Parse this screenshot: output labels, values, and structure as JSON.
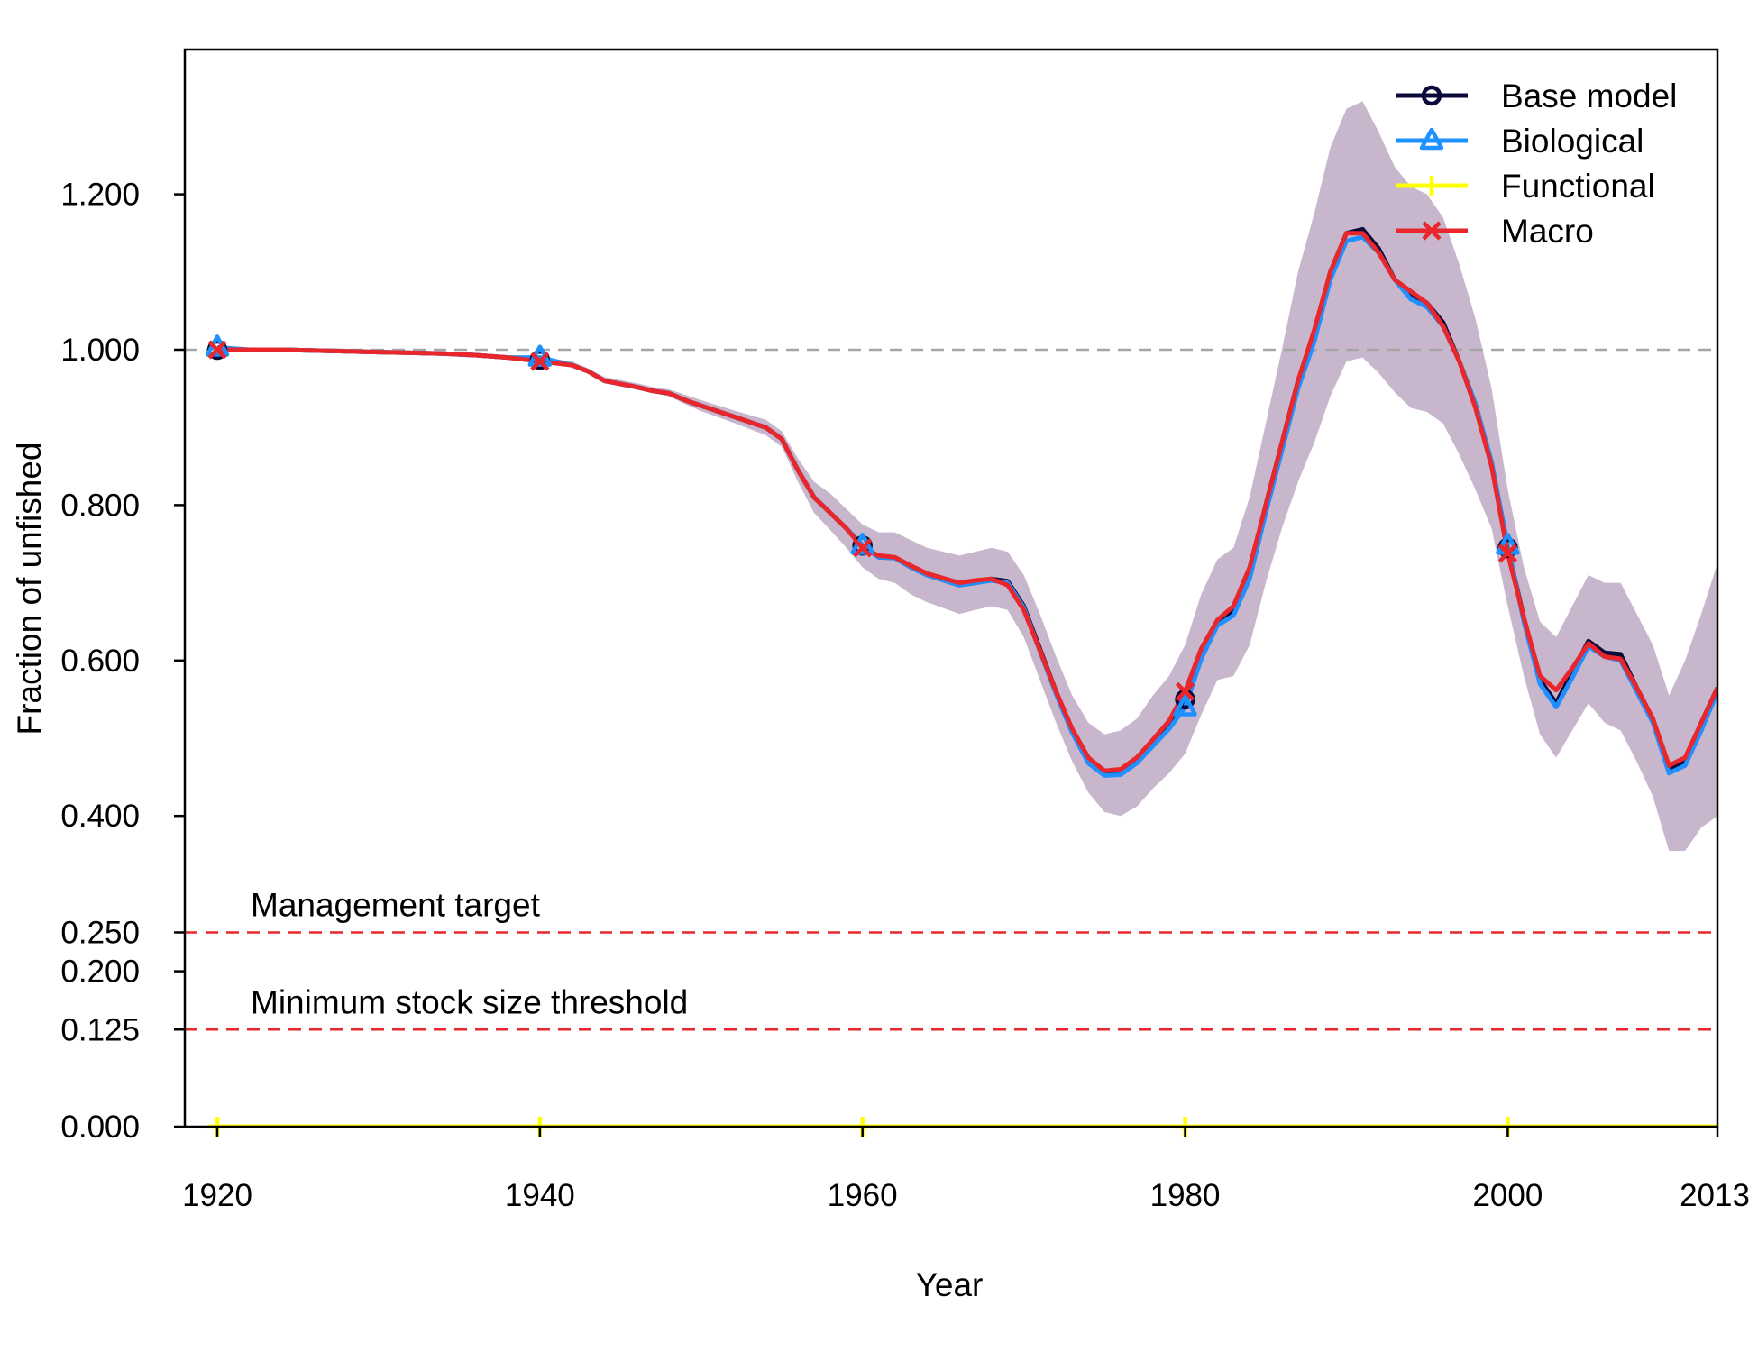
{
  "chart_data": {
    "type": "line",
    "xlabel": "Year",
    "ylabel": "Fraction of unfished",
    "xlim": [
      1918,
      2013
    ],
    "ylim": [
      0,
      1.38
    ],
    "x_ticks": [
      1920,
      1940,
      1960,
      1980,
      2000,
      2013
    ],
    "x_tick_labels": [
      "1920",
      "1940",
      "1960",
      "1980",
      "2000",
      "2013"
    ],
    "y_ticks": [
      0,
      0.125,
      0.2,
      0.25,
      0.4,
      0.6,
      0.8,
      1.0,
      1.2
    ],
    "y_tick_labels": [
      "0.000",
      "0.125",
      "0.200",
      "0.250",
      "0.400",
      "0.600",
      "0.800",
      "1.000",
      "1.200"
    ],
    "legend_position": "top-right",
    "reference_lines": [
      {
        "y": 1.0,
        "color": "#a6a6a6",
        "label": ""
      },
      {
        "y": 0.25,
        "color": "#e8262b",
        "label": "Management target"
      },
      {
        "y": 0.125,
        "color": "#e8262b",
        "label": "Minimum stock size threshold"
      }
    ],
    "x": [
      1920,
      1922,
      1924,
      1926,
      1928,
      1930,
      1932,
      1934,
      1936,
      1938,
      1940,
      1942,
      1943,
      1944,
      1946,
      1947,
      1948,
      1949,
      1950,
      1952,
      1954,
      1955,
      1956,
      1957,
      1958,
      1959,
      1960,
      1961,
      1962,
      1963,
      1964,
      1966,
      1967,
      1968,
      1969,
      1970,
      1971,
      1972,
      1973,
      1974,
      1975,
      1976,
      1977,
      1978,
      1979,
      1980,
      1981,
      1982,
      1983,
      1984,
      1985,
      1986,
      1987,
      1988,
      1989,
      1990,
      1991,
      1992,
      1993,
      1994,
      1995,
      1996,
      1997,
      1998,
      1999,
      2000,
      2001,
      2002,
      2003,
      2004,
      2005,
      2006,
      2007,
      2008,
      2009,
      2010,
      2011,
      2012,
      2013
    ],
    "series": [
      {
        "name": "Base model",
        "color": "#0b0b3b",
        "marker": "circle",
        "values": [
          1.0,
          1.0,
          1.0,
          0.999,
          0.998,
          0.997,
          0.996,
          0.995,
          0.993,
          0.99,
          0.987,
          0.98,
          0.972,
          0.96,
          0.952,
          0.947,
          0.944,
          0.935,
          0.928,
          0.914,
          0.9,
          0.885,
          0.845,
          0.81,
          0.79,
          0.77,
          0.748,
          0.733,
          0.732,
          0.72,
          0.71,
          0.697,
          0.7,
          0.705,
          0.702,
          0.67,
          0.615,
          0.56,
          0.51,
          0.472,
          0.455,
          0.457,
          0.472,
          0.495,
          0.518,
          0.55,
          0.61,
          0.65,
          0.665,
          0.715,
          0.8,
          0.88,
          0.96,
          1.02,
          1.1,
          1.15,
          1.155,
          1.13,
          1.09,
          1.07,
          1.06,
          1.035,
          0.985,
          0.93,
          0.855,
          0.745,
          0.655,
          0.575,
          0.545,
          0.585,
          0.625,
          0.61,
          0.608,
          0.565,
          0.525,
          0.46,
          0.47,
          0.52,
          0.565
        ]
      },
      {
        "name": "Biological",
        "color": "#1e90ff",
        "marker": "triangle",
        "values": [
          1.003,
          1.0,
          1.0,
          0.999,
          0.998,
          0.997,
          0.996,
          0.995,
          0.993,
          0.99,
          0.99,
          0.98,
          0.972,
          0.96,
          0.952,
          0.947,
          0.944,
          0.935,
          0.928,
          0.914,
          0.9,
          0.885,
          0.845,
          0.81,
          0.79,
          0.77,
          0.748,
          0.733,
          0.732,
          0.72,
          0.71,
          0.697,
          0.7,
          0.703,
          0.7,
          0.668,
          0.612,
          0.557,
          0.507,
          0.468,
          0.452,
          0.453,
          0.468,
          0.49,
          0.512,
          0.54,
          0.602,
          0.645,
          0.658,
          0.705,
          0.79,
          0.87,
          0.95,
          1.01,
          1.09,
          1.14,
          1.145,
          1.125,
          1.09,
          1.065,
          1.055,
          1.03,
          0.985,
          0.93,
          0.855,
          0.748,
          0.65,
          0.57,
          0.54,
          0.578,
          0.618,
          0.605,
          0.6,
          0.56,
          0.52,
          0.455,
          0.465,
          0.51,
          0.56
        ]
      },
      {
        "name": "Functional",
        "color": "#ffff00",
        "marker": "plus",
        "values": [
          0,
          0,
          0,
          0,
          0,
          0,
          0,
          0,
          0,
          0,
          0,
          0,
          0,
          0,
          0,
          0,
          0,
          0,
          0,
          0,
          0,
          0,
          0,
          0,
          0,
          0,
          0,
          0,
          0,
          0,
          0,
          0,
          0,
          0,
          0,
          0,
          0,
          0,
          0,
          0,
          0,
          0,
          0,
          0,
          0,
          0,
          0,
          0,
          0,
          0,
          0,
          0,
          0,
          0,
          0,
          0,
          0,
          0,
          0,
          0,
          0,
          0,
          0,
          0,
          0,
          0,
          0,
          0,
          0,
          0,
          0,
          0,
          0,
          0,
          0,
          0,
          0,
          0,
          0
        ]
      },
      {
        "name": "Macro",
        "color": "#e8262b",
        "marker": "x",
        "values": [
          1.0,
          1.0,
          1.0,
          0.999,
          0.998,
          0.997,
          0.996,
          0.995,
          0.993,
          0.99,
          0.985,
          0.98,
          0.972,
          0.96,
          0.952,
          0.947,
          0.944,
          0.935,
          0.928,
          0.914,
          0.9,
          0.885,
          0.845,
          0.81,
          0.79,
          0.77,
          0.745,
          0.735,
          0.733,
          0.722,
          0.712,
          0.7,
          0.703,
          0.705,
          0.697,
          0.665,
          0.613,
          0.56,
          0.512,
          0.475,
          0.458,
          0.46,
          0.475,
          0.498,
          0.522,
          0.56,
          0.615,
          0.652,
          0.67,
          0.72,
          0.8,
          0.88,
          0.96,
          1.025,
          1.1,
          1.15,
          1.15,
          1.125,
          1.09,
          1.075,
          1.06,
          1.03,
          0.985,
          0.925,
          0.85,
          0.738,
          0.655,
          0.58,
          0.562,
          0.59,
          0.622,
          0.605,
          0.602,
          0.565,
          0.525,
          0.465,
          0.475,
          0.52,
          0.565
        ]
      }
    ],
    "uncertainty_band": {
      "color": "#9d84a8",
      "lower": [
        1.0,
        1.0,
        1.0,
        0.999,
        0.998,
        0.997,
        0.996,
        0.995,
        0.993,
        0.99,
        0.985,
        0.979,
        0.97,
        0.958,
        0.95,
        0.944,
        0.94,
        0.93,
        0.921,
        0.906,
        0.89,
        0.875,
        0.83,
        0.79,
        0.768,
        0.745,
        0.72,
        0.705,
        0.7,
        0.685,
        0.675,
        0.66,
        0.665,
        0.67,
        0.665,
        0.63,
        0.575,
        0.52,
        0.47,
        0.43,
        0.405,
        0.4,
        0.412,
        0.435,
        0.455,
        0.48,
        0.53,
        0.575,
        0.58,
        0.62,
        0.7,
        0.77,
        0.83,
        0.88,
        0.94,
        0.985,
        0.99,
        0.97,
        0.945,
        0.925,
        0.92,
        0.905,
        0.865,
        0.82,
        0.77,
        0.67,
        0.58,
        0.505,
        0.475,
        0.51,
        0.545,
        0.52,
        0.51,
        0.47,
        0.425,
        0.355,
        0.355,
        0.385,
        0.4
      ],
      "upper": [
        1.0,
        1.0,
        1.0,
        0.999,
        0.998,
        0.997,
        0.996,
        0.995,
        0.994,
        0.992,
        0.99,
        0.985,
        0.976,
        0.965,
        0.957,
        0.952,
        0.949,
        0.942,
        0.935,
        0.922,
        0.91,
        0.895,
        0.86,
        0.83,
        0.815,
        0.795,
        0.775,
        0.765,
        0.765,
        0.755,
        0.745,
        0.735,
        0.74,
        0.745,
        0.74,
        0.71,
        0.66,
        0.605,
        0.555,
        0.52,
        0.505,
        0.51,
        0.525,
        0.555,
        0.58,
        0.62,
        0.685,
        0.73,
        0.745,
        0.81,
        0.905,
        1.0,
        1.1,
        1.175,
        1.26,
        1.31,
        1.32,
        1.28,
        1.235,
        1.21,
        1.2,
        1.17,
        1.11,
        1.04,
        0.95,
        0.82,
        0.72,
        0.65,
        0.63,
        0.67,
        0.71,
        0.7,
        0.7,
        0.66,
        0.62,
        0.555,
        0.6,
        0.66,
        0.725
      ]
    }
  }
}
